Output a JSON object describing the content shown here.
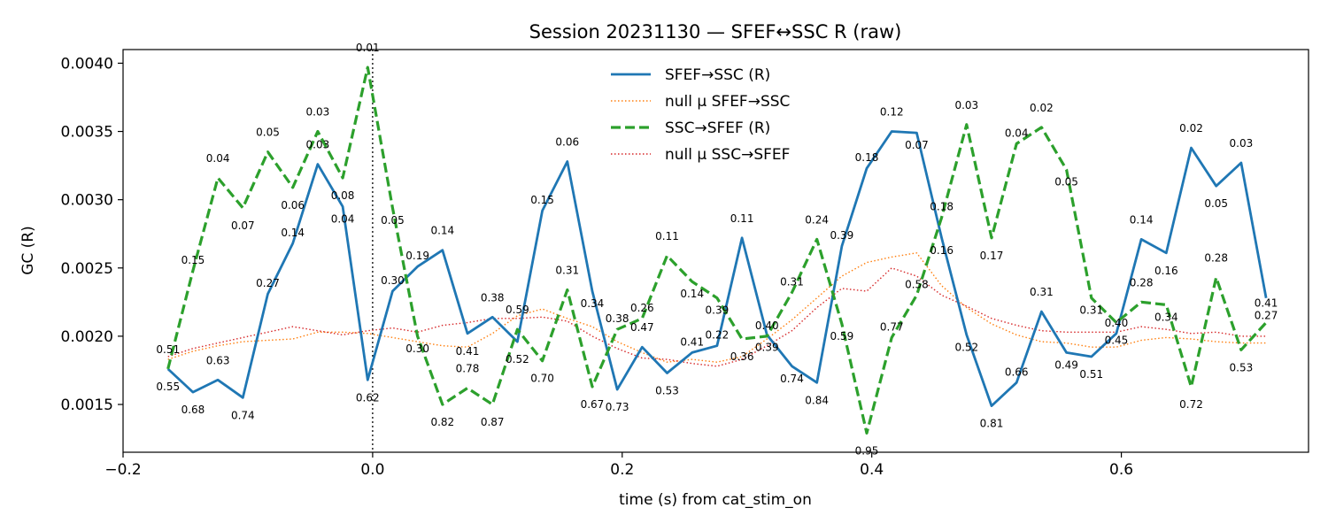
{
  "chart_data": {
    "type": "line",
    "title": "Session 20231130 — SFEF↔SSC R (raw)",
    "xlabel": "time (s) from cat_stim_on",
    "ylabel": "GC (R)",
    "xlim": [
      -0.2,
      0.75
    ],
    "ylim": [
      0.00115,
      0.0041
    ],
    "xticks": [
      -0.2,
      0.0,
      0.2,
      0.4,
      0.6
    ],
    "xtick_labels": [
      "−0.2",
      "0.0",
      "0.2",
      "0.4",
      "0.6"
    ],
    "yticks": [
      0.0015,
      0.002,
      0.0025,
      0.003,
      0.0035,
      0.004
    ],
    "ytick_labels": [
      "0.0015",
      "0.0020",
      "0.0025",
      "0.0030",
      "0.0035",
      "0.0040"
    ],
    "vline_x": 0.0,
    "legend_position": "top-center",
    "x": [
      -0.164,
      -0.144,
      -0.124,
      -0.104,
      -0.084,
      -0.064,
      -0.044,
      -0.024,
      -0.004,
      0.016,
      0.036,
      0.056,
      0.076,
      0.096,
      0.116,
      0.136,
      0.156,
      0.176,
      0.196,
      0.216,
      0.236,
      0.256,
      0.276,
      0.296,
      0.316,
      0.336,
      0.356,
      0.376,
      0.396,
      0.416,
      0.436,
      0.456,
      0.476,
      0.496,
      0.516,
      0.536,
      0.556,
      0.576,
      0.596,
      0.616,
      0.636,
      0.656,
      0.676,
      0.696,
      0.716
    ],
    "series": [
      {
        "name": "SFEF→SSC (R)",
        "color": "#1f77b4",
        "style": "solid",
        "values": [
          0.00176,
          0.00159,
          0.00168,
          0.00155,
          0.00231,
          0.00268,
          0.00326,
          0.00295,
          0.00168,
          0.00233,
          0.00251,
          0.00263,
          0.00202,
          0.00214,
          0.00196,
          0.00292,
          0.00328,
          0.00233,
          0.00161,
          0.00192,
          0.00173,
          0.00188,
          0.00193,
          0.00272,
          0.00201,
          0.00178,
          0.00166,
          0.00266,
          0.00323,
          0.0035,
          0.00349,
          0.00272,
          0.00201,
          0.00149,
          0.00166,
          0.00218,
          0.00188,
          0.00185,
          0.00202,
          0.00271,
          0.00261,
          0.00338,
          0.0031,
          0.00327,
          0.00228
        ],
        "pvalues": [
          "0.51",
          "0.68",
          "0.63",
          "0.74",
          "0.27",
          "0.14",
          "0.03",
          "0.04",
          "0.62",
          "0.30",
          "0.19",
          "0.14",
          "0.41",
          "0.38",
          "0.52",
          "0.15",
          "0.06",
          "0.34",
          "0.73",
          "0.47",
          "0.53",
          "0.41",
          "0.22",
          "0.11",
          "0.39",
          "0.74",
          "0.84",
          "0.39",
          "0.18",
          "0.12",
          "0.07",
          "0.16",
          "0.52",
          "0.81",
          "0.66",
          "0.31",
          "0.49",
          "0.51",
          "0.40",
          "0.14",
          "0.16",
          "0.02",
          "0.05",
          "0.03",
          "0.27"
        ]
      },
      {
        "name": "null μ SFEF→SSC",
        "color": "#ff7f0e",
        "style": "dotted",
        "values": [
          0.00183,
          0.00189,
          0.00193,
          0.00196,
          0.00197,
          0.00198,
          0.00203,
          0.00203,
          0.00202,
          0.00199,
          0.00196,
          0.00193,
          0.00192,
          0.00202,
          0.00215,
          0.0022,
          0.00213,
          0.00207,
          0.00196,
          0.00188,
          0.00181,
          0.00183,
          0.00181,
          0.00185,
          0.00198,
          0.00212,
          0.00228,
          0.00244,
          0.00254,
          0.00258,
          0.00261,
          0.00237,
          0.00221,
          0.00209,
          0.00201,
          0.00196,
          0.00195,
          0.00192,
          0.00192,
          0.00197,
          0.00199,
          0.00198,
          0.00196,
          0.00195,
          0.00195
        ]
      },
      {
        "name": "SSC→SFEF (R)",
        "color": "#2ca02c",
        "style": "dashed",
        "values": [
          0.00176,
          0.00248,
          0.00316,
          0.00294,
          0.00335,
          0.00309,
          0.0035,
          0.00316,
          0.00397,
          0.00294,
          0.002,
          0.0015,
          0.00162,
          0.0015,
          0.00205,
          0.00182,
          0.00234,
          0.00163,
          0.00205,
          0.00213,
          0.00259,
          0.0024,
          0.00228,
          0.00198,
          0.002,
          0.00232,
          0.00271,
          0.00209,
          0.00129,
          0.00199,
          0.0023,
          0.00287,
          0.00355,
          0.00272,
          0.00341,
          0.00353,
          0.00322,
          0.00228,
          0.0021,
          0.00225,
          0.00223,
          0.00163,
          0.00243,
          0.0019,
          0.0021
        ],
        "pvalues": [
          "0.55",
          "0.15",
          "0.04",
          "0.07",
          "0.05",
          "0.06",
          "0.03",
          "0.08",
          "0.01",
          "0.05",
          "0.30",
          "0.82",
          "0.78",
          "0.87",
          "0.59",
          "0.70",
          "0.31",
          "0.67",
          "0.38",
          "0.26",
          "0.11",
          "0.14",
          "0.39",
          "0.36",
          "0.40",
          "0.31",
          "0.24",
          "0.59",
          "0.95",
          "0.77",
          "0.58",
          "0.18",
          "0.03",
          "0.17",
          "0.04",
          "0.02",
          "0.05",
          "0.31",
          "0.45",
          "0.28",
          "0.34",
          "0.72",
          "0.28",
          "0.53",
          "0.41"
        ]
      },
      {
        "name": "null μ SSC→SFEF",
        "color": "#d62728",
        "style": "dotted",
        "values": [
          0.00185,
          0.00191,
          0.00195,
          0.00199,
          0.00203,
          0.00207,
          0.00204,
          0.00201,
          0.00204,
          0.00206,
          0.00203,
          0.00208,
          0.0021,
          0.00213,
          0.00213,
          0.00214,
          0.00211,
          0.002,
          0.00191,
          0.00184,
          0.00183,
          0.0018,
          0.00178,
          0.00183,
          0.00193,
          0.00204,
          0.00221,
          0.00235,
          0.00233,
          0.0025,
          0.00244,
          0.0023,
          0.00222,
          0.00213,
          0.00208,
          0.00204,
          0.00203,
          0.00203,
          0.00203,
          0.00207,
          0.00205,
          0.00202,
          0.00203,
          0.002,
          0.002
        ]
      }
    ]
  }
}
